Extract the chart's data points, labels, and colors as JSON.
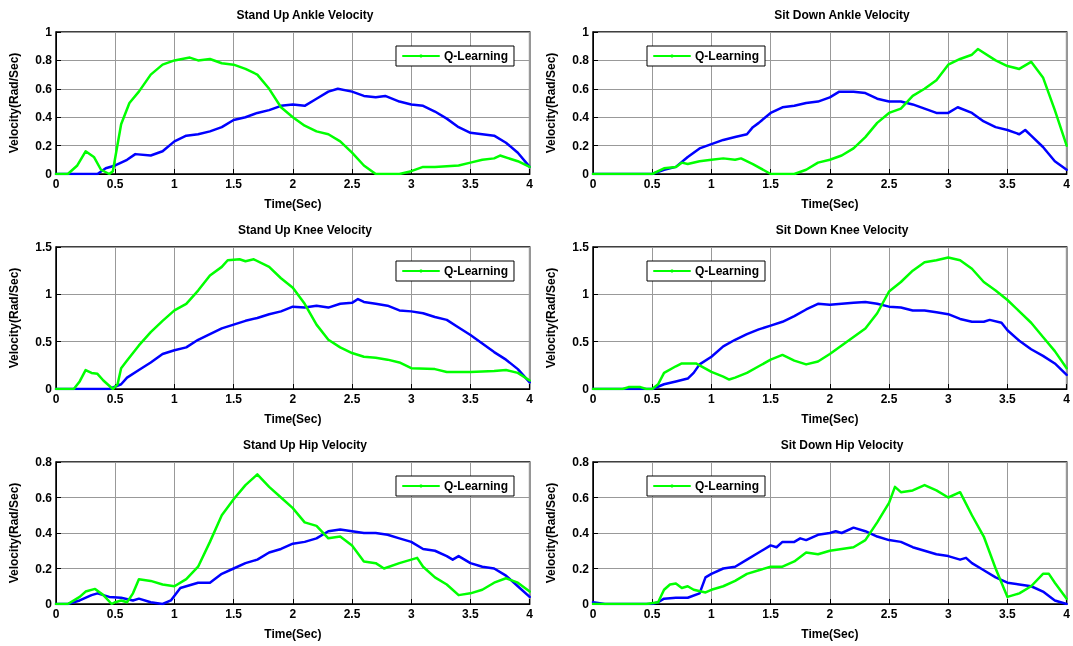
{
  "chart_data": [
    {
      "type": "line",
      "title": "Stand Up Ankle Velocity",
      "xlabel": "Time(Sec)",
      "ylabel": "Velocity(Rad/Sec)",
      "xlim": [
        0,
        4
      ],
      "xticks": [
        0,
        0.5,
        1,
        1.5,
        2,
        2.5,
        3,
        3.5,
        4
      ],
      "ylim": [
        0,
        1
      ],
      "yticks": [
        0,
        0.2,
        0.4,
        0.6,
        0.8,
        1
      ],
      "grid": true,
      "legend": "top right",
      "marker": "none",
      "line_style": "solid",
      "series": [
        {
          "color": "#0000ff",
          "x": [
            0,
            0.35,
            0.42,
            0.5,
            0.6,
            0.67,
            0.8,
            0.9,
            1.0,
            1.1,
            1.2,
            1.3,
            1.4,
            1.5,
            1.6,
            1.7,
            1.8,
            1.9,
            2.0,
            2.1,
            2.2,
            2.3,
            2.38,
            2.5,
            2.6,
            2.7,
            2.78,
            2.9,
            3.0,
            3.1,
            3.2,
            3.3,
            3.4,
            3.5,
            3.6,
            3.7,
            3.8,
            3.9,
            4.0
          ],
          "values": [
            0,
            0,
            0.04,
            0.06,
            0.1,
            0.14,
            0.13,
            0.16,
            0.23,
            0.27,
            0.28,
            0.3,
            0.33,
            0.38,
            0.4,
            0.43,
            0.45,
            0.48,
            0.49,
            0.48,
            0.53,
            0.58,
            0.6,
            0.58,
            0.55,
            0.54,
            0.55,
            0.51,
            0.49,
            0.48,
            0.44,
            0.39,
            0.33,
            0.29,
            0.28,
            0.27,
            0.22,
            0.15,
            0.05
          ]
        },
        {
          "name": "Q-Learning",
          "color": "#00ff00",
          "x": [
            0,
            0.1,
            0.18,
            0.25,
            0.32,
            0.38,
            0.45,
            0.48,
            0.55,
            0.62,
            0.7,
            0.8,
            0.9,
            1.0,
            1.13,
            1.2,
            1.3,
            1.4,
            1.5,
            1.6,
            1.7,
            1.8,
            1.9,
            2.0,
            2.1,
            2.2,
            2.3,
            2.4,
            2.5,
            2.6,
            2.7,
            2.9,
            3.0,
            3.1,
            3.2,
            3.4,
            3.5,
            3.6,
            3.7,
            3.75,
            3.9,
            4.0
          ],
          "values": [
            0,
            0,
            0.06,
            0.16,
            0.12,
            0.03,
            0,
            0.02,
            0.35,
            0.5,
            0.58,
            0.7,
            0.77,
            0.8,
            0.82,
            0.8,
            0.81,
            0.78,
            0.77,
            0.74,
            0.7,
            0.6,
            0.47,
            0.4,
            0.34,
            0.3,
            0.28,
            0.23,
            0.15,
            0.06,
            0,
            0,
            0.02,
            0.05,
            0.05,
            0.06,
            0.08,
            0.1,
            0.11,
            0.13,
            0.09,
            0.05
          ]
        }
      ]
    },
    {
      "type": "line",
      "title": "Sit Down Ankle Velocity",
      "xlabel": "Time(Sec)",
      "ylabel": "Velocity(Rad/Sec)",
      "xlim": [
        0,
        4
      ],
      "xticks": [
        0,
        0.5,
        1,
        1.5,
        2,
        2.5,
        3,
        3.5,
        4
      ],
      "ylim": [
        0,
        1
      ],
      "yticks": [
        0,
        0.2,
        0.4,
        0.6,
        0.8,
        1
      ],
      "grid": true,
      "legend": "top left",
      "marker": "none",
      "line_style": "solid",
      "series": [
        {
          "color": "#0000ff",
          "x": [
            0,
            0.5,
            0.6,
            0.7,
            0.8,
            0.9,
            1.0,
            1.1,
            1.2,
            1.3,
            1.35,
            1.4,
            1.5,
            1.6,
            1.7,
            1.8,
            1.9,
            2.0,
            2.08,
            2.2,
            2.3,
            2.4,
            2.5,
            2.6,
            2.7,
            2.8,
            2.9,
            3.0,
            3.08,
            3.2,
            3.3,
            3.4,
            3.5,
            3.6,
            3.65,
            3.7,
            3.8,
            3.9,
            4.0
          ],
          "values": [
            0,
            0,
            0.03,
            0.05,
            0.12,
            0.18,
            0.21,
            0.24,
            0.26,
            0.28,
            0.33,
            0.36,
            0.43,
            0.47,
            0.48,
            0.5,
            0.51,
            0.54,
            0.58,
            0.58,
            0.57,
            0.53,
            0.51,
            0.51,
            0.49,
            0.46,
            0.43,
            0.43,
            0.47,
            0.43,
            0.37,
            0.33,
            0.31,
            0.28,
            0.31,
            0.27,
            0.19,
            0.09,
            0.03
          ]
        },
        {
          "name": "Q-Learning",
          "color": "#00ff00",
          "x": [
            0,
            0.5,
            0.6,
            0.7,
            0.75,
            0.8,
            0.9,
            1.0,
            1.1,
            1.2,
            1.25,
            1.35,
            1.5,
            1.7,
            1.8,
            1.9,
            2.0,
            2.1,
            2.2,
            2.3,
            2.4,
            2.5,
            2.6,
            2.7,
            2.8,
            2.9,
            3.0,
            3.1,
            3.2,
            3.25,
            3.4,
            3.5,
            3.6,
            3.7,
            3.8,
            3.9,
            4.0
          ],
          "values": [
            0,
            0,
            0.04,
            0.05,
            0.08,
            0.07,
            0.09,
            0.1,
            0.11,
            0.1,
            0.11,
            0.07,
            0,
            0,
            0.03,
            0.08,
            0.1,
            0.13,
            0.18,
            0.26,
            0.36,
            0.43,
            0.46,
            0.55,
            0.6,
            0.66,
            0.77,
            0.81,
            0.84,
            0.88,
            0.8,
            0.76,
            0.74,
            0.79,
            0.68,
            0.45,
            0.2
          ]
        }
      ]
    },
    {
      "type": "line",
      "title": "Stand Up Knee Velocity",
      "xlabel": "Time(Sec)",
      "ylabel": "Velocity(Rad/Sec)",
      "xlim": [
        0,
        4
      ],
      "xticks": [
        0,
        0.5,
        1,
        1.5,
        2,
        2.5,
        3,
        3.5,
        4
      ],
      "ylim": [
        0,
        1.5
      ],
      "yticks": [
        0,
        0.5,
        1,
        1.5
      ],
      "grid": true,
      "legend": "top right",
      "marker": "none",
      "line_style": "solid",
      "series": [
        {
          "color": "#0000ff",
          "x": [
            0,
            0.45,
            0.55,
            0.6,
            0.7,
            0.8,
            0.9,
            1.0,
            1.1,
            1.2,
            1.3,
            1.4,
            1.5,
            1.6,
            1.7,
            1.8,
            1.9,
            2.0,
            2.1,
            2.2,
            2.3,
            2.4,
            2.5,
            2.55,
            2.6,
            2.7,
            2.8,
            2.9,
            3.0,
            3.1,
            3.2,
            3.3,
            3.4,
            3.5,
            3.6,
            3.7,
            3.8,
            3.9,
            4.0
          ],
          "values": [
            0,
            0,
            0.05,
            0.12,
            0.2,
            0.28,
            0.37,
            0.41,
            0.44,
            0.52,
            0.58,
            0.64,
            0.68,
            0.72,
            0.75,
            0.79,
            0.82,
            0.87,
            0.86,
            0.88,
            0.86,
            0.9,
            0.91,
            0.95,
            0.92,
            0.9,
            0.88,
            0.83,
            0.82,
            0.8,
            0.76,
            0.73,
            0.65,
            0.57,
            0.48,
            0.39,
            0.31,
            0.21,
            0.07
          ]
        },
        {
          "name": "Q-Learning",
          "color": "#00ff00",
          "x": [
            0,
            0.15,
            0.2,
            0.25,
            0.3,
            0.35,
            0.4,
            0.48,
            0.52,
            0.55,
            0.6,
            0.7,
            0.8,
            0.9,
            1.0,
            1.1,
            1.2,
            1.3,
            1.4,
            1.45,
            1.55,
            1.6,
            1.67,
            1.8,
            1.9,
            2.0,
            2.1,
            2.2,
            2.3,
            2.4,
            2.5,
            2.6,
            2.7,
            2.8,
            2.9,
            3.0,
            3.2,
            3.3,
            3.5,
            3.7,
            3.8,
            3.9,
            4.0
          ],
          "values": [
            0,
            0,
            0.08,
            0.2,
            0.17,
            0.16,
            0.09,
            0,
            0.05,
            0.22,
            0.3,
            0.46,
            0.6,
            0.72,
            0.83,
            0.9,
            1.04,
            1.2,
            1.29,
            1.36,
            1.37,
            1.35,
            1.37,
            1.29,
            1.17,
            1.07,
            0.9,
            0.68,
            0.52,
            0.44,
            0.38,
            0.34,
            0.33,
            0.31,
            0.28,
            0.22,
            0.21,
            0.18,
            0.18,
            0.19,
            0.2,
            0.17,
            0.09
          ]
        }
      ]
    },
    {
      "type": "line",
      "title": "Sit Down Knee Velocity",
      "xlabel": "Time(Sec)",
      "ylabel": "Velocity(Rad/Sec)",
      "xlim": [
        0,
        4
      ],
      "xticks": [
        0,
        0.5,
        1,
        1.5,
        2,
        2.5,
        3,
        3.5,
        4
      ],
      "ylim": [
        0,
        1.5
      ],
      "yticks": [
        0,
        0.5,
        1,
        1.5
      ],
      "grid": true,
      "legend": "top left",
      "marker": "none",
      "line_style": "solid",
      "series": [
        {
          "color": "#0000ff",
          "x": [
            0,
            0.5,
            0.6,
            0.7,
            0.8,
            0.85,
            0.9,
            1.0,
            1.1,
            1.2,
            1.3,
            1.4,
            1.5,
            1.6,
            1.7,
            1.8,
            1.9,
            2.0,
            2.1,
            2.2,
            2.3,
            2.4,
            2.5,
            2.6,
            2.7,
            2.8,
            2.9,
            3.0,
            3.1,
            3.2,
            3.3,
            3.35,
            3.45,
            3.5,
            3.6,
            3.7,
            3.8,
            3.9,
            4.0
          ],
          "values": [
            0,
            0,
            0.05,
            0.08,
            0.11,
            0.17,
            0.26,
            0.34,
            0.45,
            0.52,
            0.58,
            0.63,
            0.67,
            0.71,
            0.77,
            0.84,
            0.9,
            0.89,
            0.9,
            0.91,
            0.92,
            0.9,
            0.87,
            0.86,
            0.83,
            0.83,
            0.81,
            0.79,
            0.74,
            0.71,
            0.71,
            0.73,
            0.7,
            0.62,
            0.51,
            0.42,
            0.35,
            0.27,
            0.15
          ]
        },
        {
          "name": "Q-Learning",
          "color": "#00ff00",
          "x": [
            0,
            0.25,
            0.3,
            0.4,
            0.45,
            0.5,
            0.55,
            0.6,
            0.7,
            0.75,
            0.87,
            0.9,
            1.0,
            1.1,
            1.15,
            1.2,
            1.3,
            1.4,
            1.5,
            1.6,
            1.7,
            1.8,
            1.9,
            2.0,
            2.1,
            2.2,
            2.3,
            2.4,
            2.5,
            2.6,
            2.7,
            2.8,
            2.9,
            3.0,
            3.1,
            3.2,
            3.3,
            3.4,
            3.5,
            3.6,
            3.7,
            3.8,
            3.9,
            4.0
          ],
          "values": [
            0,
            0,
            0.02,
            0.02,
            0,
            0,
            0.05,
            0.17,
            0.24,
            0.27,
            0.27,
            0.25,
            0.18,
            0.13,
            0.1,
            0.12,
            0.17,
            0.24,
            0.31,
            0.36,
            0.3,
            0.26,
            0.29,
            0.37,
            0.46,
            0.55,
            0.64,
            0.8,
            1.03,
            1.13,
            1.25,
            1.34,
            1.36,
            1.39,
            1.36,
            1.27,
            1.13,
            1.04,
            0.94,
            0.82,
            0.7,
            0.55,
            0.4,
            0.22
          ]
        }
      ]
    },
    {
      "type": "line",
      "title": "Stand Up Hip Velocity",
      "xlabel": "Time(Sec)",
      "ylabel": "Velocity(Rad/Sec)",
      "xlim": [
        0,
        4
      ],
      "xticks": [
        0,
        0.5,
        1,
        1.5,
        2,
        2.5,
        3,
        3.5,
        4
      ],
      "ylim": [
        0,
        0.8
      ],
      "yticks": [
        0,
        0.2,
        0.4,
        0.6,
        0.8
      ],
      "grid": true,
      "legend": "top right",
      "marker": "none",
      "line_style": "solid",
      "series": [
        {
          "color": "#0000ff",
          "x": [
            0,
            0.1,
            0.2,
            0.3,
            0.35,
            0.45,
            0.55,
            0.65,
            0.7,
            0.8,
            0.9,
            0.97,
            1.05,
            1.1,
            1.2,
            1.3,
            1.4,
            1.5,
            1.6,
            1.7,
            1.8,
            1.9,
            2.0,
            2.1,
            2.2,
            2.3,
            2.4,
            2.5,
            2.6,
            2.7,
            2.8,
            2.9,
            3.0,
            3.1,
            3.2,
            3.3,
            3.35,
            3.4,
            3.5,
            3.6,
            3.7,
            3.8,
            3.9,
            4.0
          ],
          "values": [
            0,
            0,
            0.02,
            0.05,
            0.06,
            0.04,
            0.035,
            0.02,
            0.03,
            0.01,
            0,
            0.02,
            0.09,
            0.1,
            0.12,
            0.12,
            0.17,
            0.2,
            0.23,
            0.25,
            0.29,
            0.31,
            0.34,
            0.35,
            0.37,
            0.41,
            0.42,
            0.41,
            0.4,
            0.4,
            0.39,
            0.37,
            0.35,
            0.31,
            0.3,
            0.27,
            0.25,
            0.27,
            0.23,
            0.21,
            0.2,
            0.16,
            0.1,
            0.04
          ]
        },
        {
          "name": "Q-Learning",
          "color": "#00ff00",
          "x": [
            0,
            0.1,
            0.2,
            0.25,
            0.33,
            0.4,
            0.47,
            0.5,
            0.55,
            0.6,
            0.65,
            0.7,
            0.8,
            0.9,
            1.0,
            1.1,
            1.2,
            1.3,
            1.4,
            1.5,
            1.6,
            1.7,
            1.8,
            1.9,
            2.0,
            2.1,
            2.2,
            2.3,
            2.4,
            2.5,
            2.6,
            2.7,
            2.77,
            2.9,
            3.0,
            3.05,
            3.1,
            3.2,
            3.3,
            3.4,
            3.5,
            3.6,
            3.7,
            3.8,
            3.9,
            4.0
          ],
          "values": [
            0,
            0,
            0.04,
            0.07,
            0.085,
            0.05,
            0,
            0.01,
            0.02,
            0.01,
            0.06,
            0.14,
            0.13,
            0.11,
            0.1,
            0.14,
            0.21,
            0.35,
            0.5,
            0.59,
            0.67,
            0.73,
            0.66,
            0.6,
            0.54,
            0.46,
            0.44,
            0.37,
            0.38,
            0.33,
            0.24,
            0.23,
            0.2,
            0.23,
            0.25,
            0.26,
            0.21,
            0.15,
            0.11,
            0.05,
            0.06,
            0.08,
            0.12,
            0.145,
            0.12,
            0.07
          ]
        }
      ]
    },
    {
      "type": "line",
      "title": "Sit Down Hip Velocity",
      "xlabel": "Time(Sec)",
      "ylabel": "Velocity(Rad/Sec)",
      "xlim": [
        0,
        4
      ],
      "xticks": [
        0,
        0.5,
        1,
        1.5,
        2,
        2.5,
        3,
        3.5,
        4
      ],
      "ylim": [
        0,
        0.8
      ],
      "yticks": [
        0,
        0.2,
        0.4,
        0.6,
        0.8
      ],
      "grid": true,
      "legend": "top left",
      "marker": "none",
      "line_style": "solid",
      "series": [
        {
          "color": "#0000ff",
          "x": [
            0,
            0.1,
            0.5,
            0.55,
            0.6,
            0.7,
            0.8,
            0.9,
            0.95,
            1.0,
            1.1,
            1.2,
            1.3,
            1.4,
            1.5,
            1.55,
            1.6,
            1.7,
            1.75,
            1.8,
            1.9,
            2.0,
            2.05,
            2.1,
            2.2,
            2.3,
            2.4,
            2.5,
            2.6,
            2.7,
            2.8,
            2.9,
            3.0,
            3.1,
            3.15,
            3.2,
            3.3,
            3.4,
            3.5,
            3.6,
            3.7,
            3.8,
            3.9,
            4.0
          ],
          "values": [
            0.01,
            0,
            0,
            0.01,
            0.03,
            0.035,
            0.035,
            0.06,
            0.15,
            0.17,
            0.2,
            0.21,
            0.25,
            0.29,
            0.33,
            0.32,
            0.35,
            0.35,
            0.37,
            0.36,
            0.39,
            0.4,
            0.41,
            0.4,
            0.43,
            0.41,
            0.38,
            0.36,
            0.35,
            0.32,
            0.3,
            0.28,
            0.27,
            0.25,
            0.26,
            0.23,
            0.19,
            0.15,
            0.12,
            0.11,
            0.1,
            0.07,
            0.02,
            0
          ]
        },
        {
          "name": "Q-Learning",
          "color": "#00ff00",
          "x": [
            0,
            0.45,
            0.55,
            0.6,
            0.65,
            0.7,
            0.75,
            0.8,
            0.85,
            0.95,
            1.0,
            1.1,
            1.2,
            1.3,
            1.4,
            1.5,
            1.6,
            1.7,
            1.8,
            1.9,
            2.0,
            2.1,
            2.2,
            2.3,
            2.4,
            2.5,
            2.55,
            2.6,
            2.7,
            2.8,
            2.9,
            3.0,
            3.1,
            3.2,
            3.3,
            3.4,
            3.5,
            3.6,
            3.7,
            3.8,
            3.85,
            3.9,
            4.0
          ],
          "values": [
            0,
            0,
            0.01,
            0.08,
            0.11,
            0.115,
            0.09,
            0.1,
            0.08,
            0.065,
            0.08,
            0.1,
            0.13,
            0.17,
            0.19,
            0.21,
            0.21,
            0.24,
            0.29,
            0.28,
            0.3,
            0.31,
            0.32,
            0.36,
            0.46,
            0.57,
            0.66,
            0.63,
            0.64,
            0.67,
            0.64,
            0.6,
            0.63,
            0.5,
            0.38,
            0.2,
            0.04,
            0.06,
            0.1,
            0.17,
            0.17,
            0.12,
            0.03
          ]
        }
      ]
    }
  ]
}
